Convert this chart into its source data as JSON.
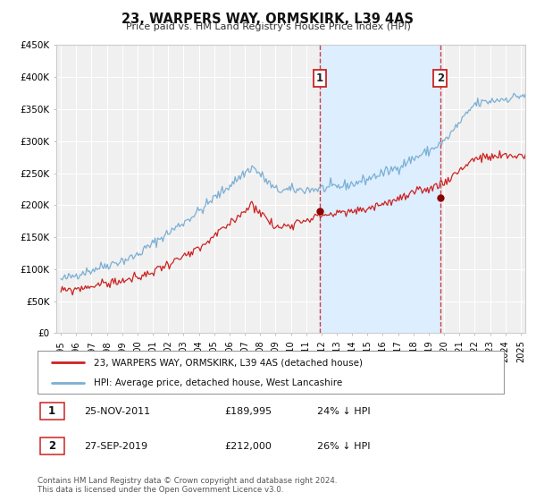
{
  "title": "23, WARPERS WAY, ORMSKIRK, L39 4AS",
  "subtitle": "Price paid vs. HM Land Registry's House Price Index (HPI)",
  "ylim": [
    0,
    450000
  ],
  "yticks": [
    0,
    50000,
    100000,
    150000,
    200000,
    250000,
    300000,
    350000,
    400000,
    450000
  ],
  "ytick_labels": [
    "£0",
    "£50K",
    "£100K",
    "£150K",
    "£200K",
    "£250K",
    "£300K",
    "£350K",
    "£400K",
    "£450K"
  ],
  "hpi_color": "#7bafd4",
  "price_color": "#cc2222",
  "marker_color": "#8b0000",
  "dashed_line_color": "#cc2222",
  "shade_color": "#ddeeff",
  "background_color": "#ffffff",
  "plot_bg_color": "#f0f0f0",
  "grid_color": "#ffffff",
  "sale1_year": 2011.9,
  "sale1_price": 189995,
  "sale1_label": "1",
  "sale1_date": "25-NOV-2011",
  "sale1_price_str": "£189,995",
  "sale1_hpi_pct": "24% ↓ HPI",
  "sale2_year": 2019.75,
  "sale2_price": 212000,
  "sale2_label": "2",
  "sale2_date": "27-SEP-2019",
  "sale2_price_str": "£212,000",
  "sale2_hpi_pct": "26% ↓ HPI",
  "legend_label1": "23, WARPERS WAY, ORMSKIRK, L39 4AS (detached house)",
  "legend_label2": "HPI: Average price, detached house, West Lancashire",
  "footer1": "Contains HM Land Registry data © Crown copyright and database right 2024.",
  "footer2": "This data is licensed under the Open Government Licence v3.0.",
  "xlim_left": 1994.7,
  "xlim_right": 2025.3
}
